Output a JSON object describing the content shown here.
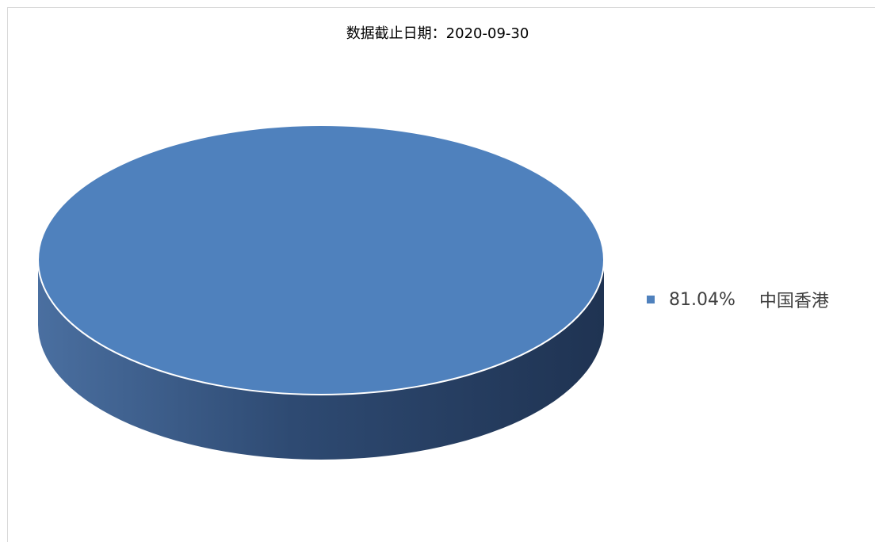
{
  "chart_data": {
    "type": "pie",
    "title": "数据截止日期：2020-09-30",
    "slices": [
      {
        "name": "中国香港",
        "value": 81.04,
        "label": "81.04%",
        "color": "#4f81bd"
      }
    ],
    "legend_position": "right",
    "style": "3d"
  },
  "colors": {
    "top": "#4f81bd",
    "side_dark": "#1f3352",
    "side_light": "#4a6fa0"
  }
}
